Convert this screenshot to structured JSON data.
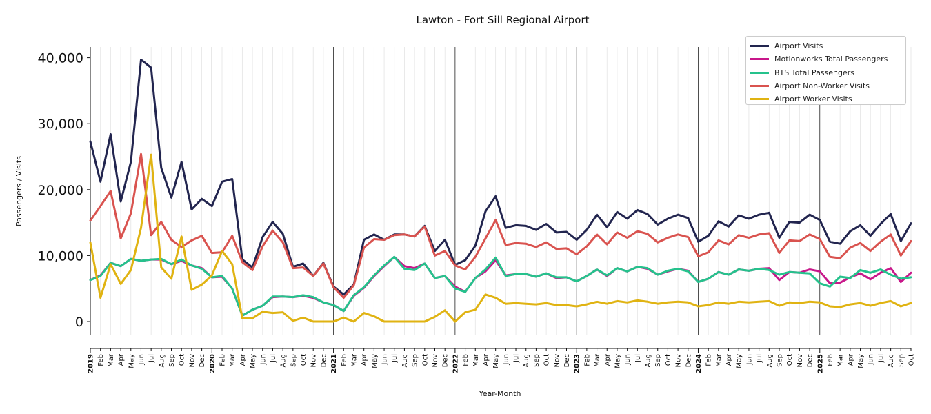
{
  "chart_data": {
    "type": "line",
    "title": "Lawton - Fort Sill Regional Airport",
    "xlabel": "Year-Month",
    "ylabel": "Passengers / Visits",
    "ylim": [
      -2000,
      41500
    ],
    "yticks": [
      0,
      10000,
      20000,
      30000,
      40000
    ],
    "ytick_labels": [
      "0",
      "10,000",
      "20,000",
      "30,000",
      "40,000"
    ],
    "grid": "vertical monthly gridlines, darker line at each January",
    "legend_position": "top-right",
    "years": [
      "2019",
      "2020",
      "2021",
      "2022",
      "2023",
      "2024",
      "2025"
    ],
    "month_labels": [
      "Jan",
      "Feb",
      "Mar",
      "Apr",
      "May",
      "Jun",
      "Jul",
      "Aug",
      "Sep",
      "Oct",
      "Nov",
      "Dec"
    ],
    "x_start": "2019-01",
    "x_end": "2025-10",
    "colors": {
      "Airport Visits": "#22254f",
      "Motionworks Total Passengers": "#c8178a",
      "BTS Total Passengers": "#25c28c",
      "Airport Non-Worker Visits": "#d9534f",
      "Airport Worker Visits": "#e0b312"
    },
    "series": [
      {
        "name": "Airport Visits",
        "values": [
          27300,
          21200,
          28400,
          18200,
          24200,
          39700,
          38500,
          23300,
          18800,
          24200,
          17000,
          18600,
          17500,
          21200,
          21600,
          9400,
          8200,
          12800,
          15100,
          13300,
          8300,
          8800,
          6900,
          8900,
          5300,
          4100,
          5600,
          12400,
          13200,
          12400,
          13200,
          13200,
          12900,
          14500,
          10700,
          12400,
          8600,
          9300,
          11500,
          16700,
          19000,
          14200,
          14600,
          14500,
          13900,
          14800,
          13500,
          13600,
          12400,
          13900,
          16200,
          14300,
          16600,
          15600,
          16900,
          16300,
          14700,
          15600,
          16200,
          15700,
          12100,
          13000,
          15200,
          14400,
          16100,
          15600,
          16200,
          16500,
          12700,
          15100,
          15000,
          16200,
          15400,
          12100,
          11800,
          13700,
          14600,
          13000,
          14800,
          16300,
          12200,
          14900
        ]
      },
      {
        "name": "Motionworks Total Passengers",
        "values": [
          6300,
          7000,
          8900,
          8400,
          9500,
          9200,
          9400,
          9400,
          8700,
          9200,
          8500,
          8100,
          6700,
          6800,
          5000,
          900,
          1800,
          2400,
          3700,
          3800,
          3700,
          3900,
          3600,
          2900,
          2500,
          1600,
          3900,
          5100,
          6900,
          8400,
          9800,
          8400,
          8100,
          8800,
          6600,
          6900,
          5300,
          4500,
          6600,
          7600,
          9300,
          7000,
          7200,
          7200,
          6800,
          7300,
          6600,
          6700,
          6100,
          6900,
          7900,
          6900,
          8100,
          7600,
          8300,
          8000,
          7100,
          7600,
          8000,
          7700,
          6000,
          6500,
          7500,
          7100,
          7900,
          7700,
          8000,
          8100,
          6300,
          7500,
          7400,
          7900,
          7600,
          5800,
          5900,
          6700,
          7300,
          6400,
          7400,
          8100,
          6000,
          7400
        ]
      },
      {
        "name": "BTS Total Passengers",
        "values": [
          6300,
          6900,
          8900,
          8400,
          9500,
          9200,
          9400,
          9500,
          8700,
          9400,
          8500,
          8000,
          6700,
          6900,
          5000,
          900,
          1800,
          2400,
          3800,
          3800,
          3700,
          4000,
          3700,
          2900,
          2500,
          1600,
          4000,
          5200,
          7000,
          8500,
          9800,
          8000,
          7800,
          8800,
          6600,
          6900,
          5000,
          4500,
          6600,
          7900,
          9700,
          6900,
          7200,
          7200,
          6800,
          7300,
          6700,
          6700,
          6100,
          6900,
          7900,
          7000,
          8100,
          7600,
          8300,
          8100,
          7100,
          7700,
          8000,
          7600,
          6000,
          6500,
          7500,
          7100,
          7900,
          7700,
          8000,
          7800,
          7100,
          7500,
          7400,
          7300,
          5800,
          5300,
          6800,
          6600,
          7800,
          7400,
          7900,
          7100,
          6500,
          6700
        ]
      },
      {
        "name": "Airport Non-Worker Visits",
        "values": [
          15300,
          17500,
          19800,
          12600,
          16400,
          25400,
          13100,
          15100,
          12400,
          11300,
          12300,
          13000,
          10400,
          10500,
          13000,
          9000,
          7800,
          11400,
          13800,
          12000,
          8100,
          8200,
          6900,
          8800,
          5200,
          3600,
          5500,
          11200,
          12500,
          12400,
          13100,
          13200,
          12900,
          14400,
          10000,
          10700,
          8500,
          7900,
          9800,
          12600,
          15400,
          11600,
          11900,
          11800,
          11300,
          12000,
          11000,
          11100,
          10200,
          11400,
          13200,
          11700,
          13500,
          12700,
          13700,
          13300,
          12000,
          12700,
          13200,
          12800,
          9900,
          10500,
          12300,
          11700,
          13100,
          12700,
          13200,
          13400,
          10400,
          12300,
          12200,
          13200,
          12500,
          9800,
          9600,
          11200,
          11900,
          10700,
          12100,
          13200,
          10000,
          12200
        ]
      },
      {
        "name": "Airport Worker Visits",
        "values": [
          12000,
          3600,
          8700,
          5700,
          7800,
          14200,
          25300,
          8200,
          6500,
          12900,
          4800,
          5600,
          7000,
          10700,
          8700,
          500,
          500,
          1500,
          1300,
          1400,
          100,
          600,
          0,
          0,
          0,
          600,
          0,
          1300,
          800,
          0,
          0,
          0,
          0,
          0,
          700,
          1700,
          0,
          1400,
          1800,
          4100,
          3600,
          2700,
          2800,
          2700,
          2600,
          2800,
          2500,
          2500,
          2300,
          2600,
          3000,
          2700,
          3100,
          2900,
          3200,
          3000,
          2700,
          2900,
          3000,
          2900,
          2300,
          2500,
          2900,
          2700,
          3000,
          2900,
          3000,
          3100,
          2400,
          2900,
          2800,
          3000,
          2900,
          2300,
          2200,
          2600,
          2800,
          2400,
          2800,
          3100,
          2300,
          2800
        ]
      }
    ]
  }
}
